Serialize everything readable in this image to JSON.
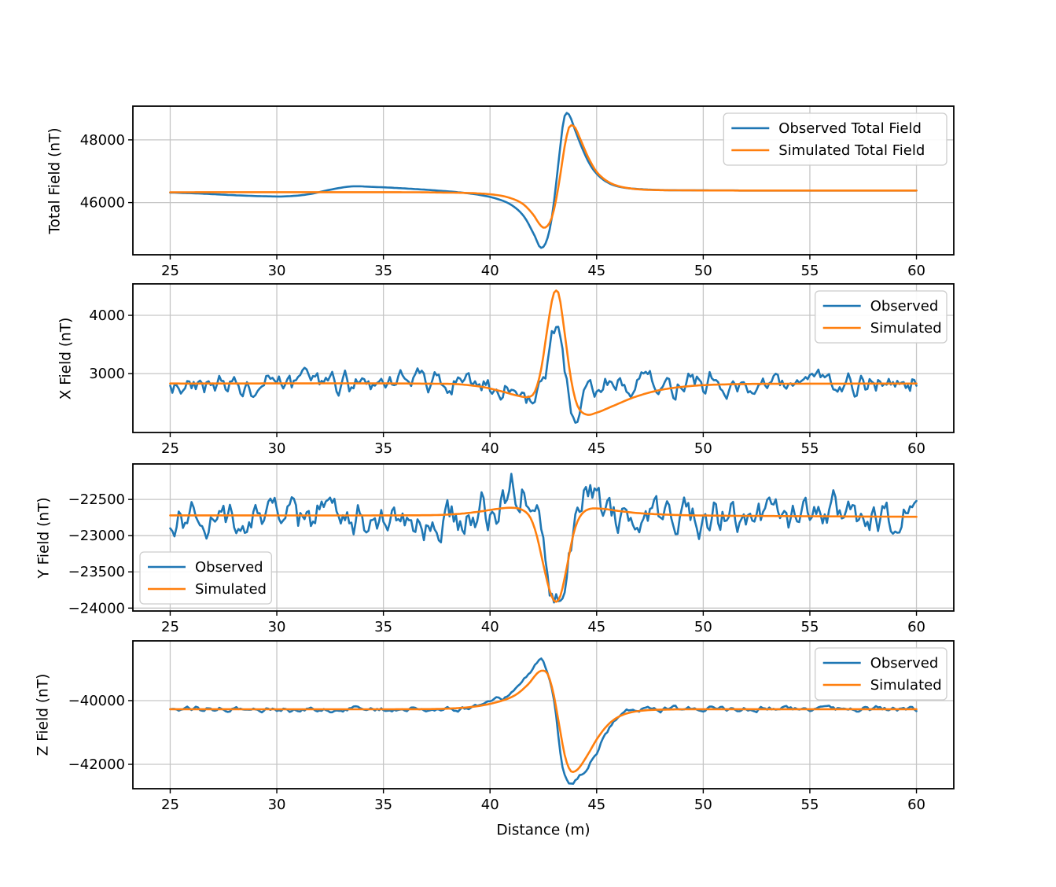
{
  "figure": {
    "background": "#ffffff",
    "axis_color": "#000000",
    "grid_color": "#c6c6c6"
  },
  "chart_data": [
    {
      "type": "line",
      "ylabel": "Total Field (nT)",
      "xlabel": "",
      "xlim": [
        23.25,
        61.75
      ],
      "ylim": [
        44335,
        49075
      ],
      "xticks": [
        25,
        30,
        35,
        40,
        45,
        50,
        55,
        60
      ],
      "yticks": [
        46000,
        48000
      ],
      "grid": true,
      "legend": {
        "loc": "upper right",
        "items": [
          "Observed Total Field",
          "Simulated Total Field"
        ]
      },
      "series": [
        {
          "name": "Observed Total Field",
          "color": "#1f77b4",
          "noise_amplitude": 0,
          "points": [
            [
              25,
              46320
            ],
            [
              26.5,
              46285
            ],
            [
              28,
              46235
            ],
            [
              29.5,
              46200
            ],
            [
              30.5,
              46200
            ],
            [
              31.5,
              46265
            ],
            [
              32.5,
              46410
            ],
            [
              33.5,
              46515
            ],
            [
              34.5,
              46500
            ],
            [
              35.5,
              46470
            ],
            [
              36.5,
              46430
            ],
            [
              37.5,
              46385
            ],
            [
              38.5,
              46330
            ],
            [
              39.5,
              46245
            ],
            [
              40.3,
              46125
            ],
            [
              41,
              45925
            ],
            [
              41.6,
              45550
            ],
            [
              42.1,
              44930
            ],
            [
              42.35,
              44570
            ],
            [
              42.6,
              44690
            ],
            [
              42.85,
              45310
            ],
            [
              43.05,
              46320
            ],
            [
              43.25,
              47520
            ],
            [
              43.45,
              48620
            ],
            [
              43.6,
              48860
            ],
            [
              43.75,
              48750
            ],
            [
              44,
              48290
            ],
            [
              44.35,
              47690
            ],
            [
              44.75,
              47140
            ],
            [
              45.2,
              46790
            ],
            [
              45.7,
              46580
            ],
            [
              46.3,
              46475
            ],
            [
              47,
              46430
            ],
            [
              48,
              46400
            ],
            [
              49.5,
              46390
            ],
            [
              52,
              46385
            ],
            [
              60,
              46385
            ]
          ]
        },
        {
          "name": "Simulated Total Field",
          "color": "#ff7f0e",
          "noise_amplitude": 0,
          "points": [
            [
              25,
              46330
            ],
            [
              36,
              46330
            ],
            [
              37.5,
              46322
            ],
            [
              39,
              46305
            ],
            [
              40,
              46265
            ],
            [
              40.8,
              46175
            ],
            [
              41.5,
              45975
            ],
            [
              42,
              45640
            ],
            [
              42.3,
              45330
            ],
            [
              42.5,
              45200
            ],
            [
              42.7,
              45260
            ],
            [
              42.9,
              45520
            ],
            [
              43.1,
              46100
            ],
            [
              43.3,
              46900
            ],
            [
              43.5,
              47790
            ],
            [
              43.7,
              48390
            ],
            [
              43.85,
              48460
            ],
            [
              44,
              48380
            ],
            [
              44.25,
              48000
            ],
            [
              44.6,
              47450
            ],
            [
              45,
              46980
            ],
            [
              45.5,
              46680
            ],
            [
              46,
              46530
            ],
            [
              46.7,
              46440
            ],
            [
              47.5,
              46405
            ],
            [
              49,
              46390
            ],
            [
              52,
              46385
            ],
            [
              60,
              46385
            ]
          ]
        }
      ]
    },
    {
      "type": "line",
      "ylabel": "X Field (nT)",
      "xlabel": "",
      "xlim": [
        23.25,
        61.75
      ],
      "ylim": [
        1990,
        4540
      ],
      "xticks": [
        25,
        30,
        35,
        40,
        45,
        50,
        55,
        60
      ],
      "yticks": [
        3000,
        4000
      ],
      "grid": true,
      "legend": {
        "loc": "upper right",
        "items": [
          "Observed",
          "Simulated"
        ]
      },
      "series": [
        {
          "name": "Observed",
          "color": "#1f77b4",
          "noise_amplitude": 160,
          "points": [
            [
              25,
              2830
            ],
            [
              39,
              2820
            ],
            [
              40,
              2760
            ],
            [
              41,
              2660
            ],
            [
              41.7,
              2610
            ],
            [
              42.2,
              2660
            ],
            [
              42.6,
              2950
            ],
            [
              42.9,
              3500
            ],
            [
              43.1,
              3760
            ],
            [
              43.3,
              3500
            ],
            [
              43.5,
              3050
            ],
            [
              43.75,
              2450
            ],
            [
              44,
              2180
            ],
            [
              44.3,
              2420
            ],
            [
              44.8,
              2690
            ],
            [
              45.5,
              2780
            ],
            [
              46.5,
              2820
            ],
            [
              60,
              2830
            ]
          ]
        },
        {
          "name": "Simulated",
          "color": "#ff7f0e",
          "noise_amplitude": 0,
          "points": [
            [
              25,
              2830
            ],
            [
              38,
              2825
            ],
            [
              39.5,
              2780
            ],
            [
              40.5,
              2700
            ],
            [
              41.2,
              2630
            ],
            [
              41.8,
              2600
            ],
            [
              42.1,
              2690
            ],
            [
              42.4,
              3080
            ],
            [
              42.7,
              3800
            ],
            [
              42.95,
              4330
            ],
            [
              43.1,
              4425
            ],
            [
              43.25,
              4330
            ],
            [
              43.5,
              3700
            ],
            [
              43.8,
              2900
            ],
            [
              44.1,
              2450
            ],
            [
              44.5,
              2300
            ],
            [
              45,
              2330
            ],
            [
              45.8,
              2450
            ],
            [
              46.8,
              2600
            ],
            [
              48,
              2720
            ],
            [
              49.5,
              2790
            ],
            [
              51,
              2815
            ],
            [
              53,
              2825
            ],
            [
              60,
              2830
            ]
          ]
        }
      ]
    },
    {
      "type": "line",
      "ylabel": "Y Field (nT)",
      "xlabel": "",
      "xlim": [
        23.25,
        61.75
      ],
      "ylim": [
        -24040,
        -22010
      ],
      "xticks": [
        25,
        30,
        35,
        40,
        45,
        50,
        55,
        60
      ],
      "yticks": [
        -24000,
        -23500,
        -23000,
        -22500
      ],
      "grid": true,
      "legend": {
        "loc": "lower left",
        "items": [
          "Observed",
          "Simulated"
        ]
      },
      "series": [
        {
          "name": "Observed",
          "color": "#1f77b4",
          "noise_amplitude": 210,
          "points": [
            [
              25,
              -22730
            ],
            [
              39.5,
              -22720
            ],
            [
              40.5,
              -22540
            ],
            [
              41.2,
              -22330
            ],
            [
              41.8,
              -22500
            ],
            [
              42.3,
              -22920
            ],
            [
              42.7,
              -23420
            ],
            [
              43.1,
              -23790
            ],
            [
              43.35,
              -23810
            ],
            [
              43.7,
              -23280
            ],
            [
              44.1,
              -22690
            ],
            [
              44.55,
              -22260
            ],
            [
              44.9,
              -22460
            ],
            [
              45.5,
              -22690
            ],
            [
              46.5,
              -22730
            ],
            [
              60,
              -22730
            ]
          ]
        },
        {
          "name": "Simulated",
          "color": "#ff7f0e",
          "noise_amplitude": 0,
          "points": [
            [
              25,
              -22720
            ],
            [
              37,
              -22718
            ],
            [
              38.5,
              -22700
            ],
            [
              39.5,
              -22668
            ],
            [
              40.3,
              -22632
            ],
            [
              41,
              -22615
            ],
            [
              41.5,
              -22642
            ],
            [
              41.9,
              -22755
            ],
            [
              42.2,
              -23010
            ],
            [
              42.5,
              -23400
            ],
            [
              42.8,
              -23760
            ],
            [
              43.05,
              -23910
            ],
            [
              43.3,
              -23830
            ],
            [
              43.6,
              -23440
            ],
            [
              43.9,
              -22990
            ],
            [
              44.2,
              -22745
            ],
            [
              44.6,
              -22638
            ],
            [
              45.2,
              -22628
            ],
            [
              46,
              -22658
            ],
            [
              47,
              -22690
            ],
            [
              48.5,
              -22712
            ],
            [
              50,
              -22722
            ],
            [
              55,
              -22732
            ],
            [
              60,
              -22740
            ]
          ]
        }
      ]
    },
    {
      "type": "line",
      "ylabel": "Z Field (nT)",
      "xlabel": "Distance (m)",
      "xlim": [
        23.25,
        61.75
      ],
      "ylim": [
        -42765,
        -38125
      ],
      "xticks": [
        25,
        30,
        35,
        40,
        45,
        50,
        55,
        60
      ],
      "yticks": [
        -42000,
        -40000
      ],
      "grid": true,
      "legend": {
        "loc": "upper right",
        "items": [
          "Observed",
          "Simulated"
        ]
      },
      "series": [
        {
          "name": "Observed",
          "color": "#1f77b4",
          "noise_amplitude": 62,
          "points": [
            [
              25,
              -40270
            ],
            [
              39,
              -40250
            ],
            [
              40,
              -40060
            ],
            [
              40.8,
              -39830
            ],
            [
              41.5,
              -39400
            ],
            [
              42,
              -38960
            ],
            [
              42.3,
              -38720
            ],
            [
              42.55,
              -38850
            ],
            [
              42.8,
              -39300
            ],
            [
              43,
              -40000
            ],
            [
              43.2,
              -41100
            ],
            [
              43.45,
              -42250
            ],
            [
              43.7,
              -42540
            ],
            [
              44,
              -42520
            ],
            [
              44.3,
              -42330
            ],
            [
              44.7,
              -41950
            ],
            [
              45.1,
              -41480
            ],
            [
              45.5,
              -40980
            ],
            [
              45.9,
              -40550
            ],
            [
              46.3,
              -40330
            ],
            [
              46.8,
              -40270
            ],
            [
              60,
              -40265
            ]
          ]
        },
        {
          "name": "Simulated",
          "color": "#ff7f0e",
          "noise_amplitude": 0,
          "points": [
            [
              25,
              -40270
            ],
            [
              37,
              -40268
            ],
            [
              38.5,
              -40235
            ],
            [
              39.5,
              -40165
            ],
            [
              40.5,
              -40015
            ],
            [
              41.2,
              -39820
            ],
            [
              41.8,
              -39480
            ],
            [
              42.2,
              -39150
            ],
            [
              42.45,
              -39060
            ],
            [
              42.7,
              -39160
            ],
            [
              42.95,
              -39700
            ],
            [
              43.2,
              -40600
            ],
            [
              43.5,
              -41700
            ],
            [
              43.75,
              -42180
            ],
            [
              43.95,
              -42230
            ],
            [
              44.2,
              -42090
            ],
            [
              44.6,
              -41680
            ],
            [
              45,
              -41220
            ],
            [
              45.5,
              -40780
            ],
            [
              46,
              -40520
            ],
            [
              46.6,
              -40370
            ],
            [
              47.4,
              -40300
            ],
            [
              48.5,
              -40278
            ],
            [
              50,
              -40270
            ],
            [
              60,
              -40270
            ]
          ]
        }
      ]
    }
  ]
}
